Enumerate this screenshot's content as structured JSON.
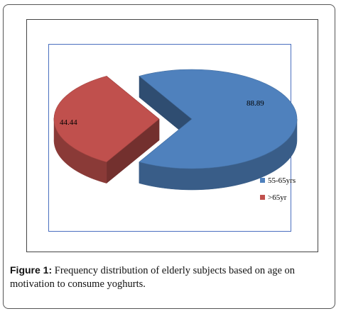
{
  "figure": {
    "caption_label": "Figure 1:",
    "caption_text": " Frequency distribution of elderly subjects based on age on motivation to consume yoghurts."
  },
  "chart_data": {
    "type": "pie",
    "title": "",
    "categories": [
      "55-65yrs",
      ">65yr"
    ],
    "values": [
      88.89,
      44.44
    ],
    "data_labels": [
      "88.89",
      "44.44"
    ],
    "colors": [
      "#4f81bd",
      "#c0504d"
    ],
    "legend_position": "bottom-right",
    "style": "3d-exploded",
    "legend": [
      {
        "label": "55-65yrs",
        "color": "#4f81bd"
      },
      {
        "label": ">65yr",
        "color": "#c0504d"
      }
    ]
  }
}
